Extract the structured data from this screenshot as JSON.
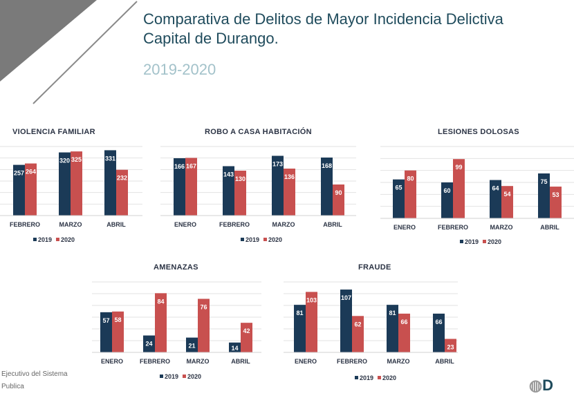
{
  "header": {
    "title_line1": "Comparativa de Delitos de Mayor Incidencia Delictiva",
    "title_line2": "Capital de Durango.",
    "subtitle": "2019-2020"
  },
  "footer": {
    "line1": "Ejecutivo   del   Sistema",
    "line2": "Publica",
    "logo_text": "D"
  },
  "colors": {
    "series_2019": "#1b3a57",
    "series_2020": "#c8504f",
    "title": "#1f4b5c",
    "subtitle": "#a3c2ca"
  },
  "chart_data": [
    {
      "type": "bar",
      "title": "VIOLENCIA FAMILIAR",
      "categories": [
        "FEBRERO",
        "MARZO",
        "ABRIL"
      ],
      "series": [
        {
          "name": "2019",
          "values": [
            257,
            320,
            331
          ]
        },
        {
          "name": "2020",
          "values": [
            264,
            325,
            232
          ]
        }
      ],
      "ylim": [
        0,
        350
      ],
      "grid": true,
      "legend": "bottom"
    },
    {
      "type": "bar",
      "title": "ROBO A CASA HABITACIÓN",
      "categories": [
        "ENERO",
        "FEBRERO",
        "MARZO",
        "ABRIL"
      ],
      "series": [
        {
          "name": "2019",
          "values": [
            166,
            143,
            173,
            168
          ]
        },
        {
          "name": "2020",
          "values": [
            167,
            130,
            136,
            90
          ]
        }
      ],
      "ylim": [
        0,
        200
      ],
      "grid": true,
      "legend": "bottom"
    },
    {
      "type": "bar",
      "title": "LESIONES DOLOSAS",
      "categories": [
        "ENERO",
        "FEBRERO",
        "MARZO",
        "ABRIL"
      ],
      "series": [
        {
          "name": "2019",
          "values": [
            65,
            60,
            64,
            75
          ]
        },
        {
          "name": "2020",
          "values": [
            80,
            99,
            54,
            53
          ]
        }
      ],
      "ylim": [
        0,
        120
      ],
      "grid": true,
      "legend": "bottom"
    },
    {
      "type": "bar",
      "title": "AMENAZAS",
      "categories": [
        "ENERO",
        "FEBRERO",
        "MARZO",
        "ABRIL"
      ],
      "series": [
        {
          "name": "2019",
          "values": [
            57,
            24,
            21,
            14
          ]
        },
        {
          "name": "2020",
          "values": [
            58,
            84,
            76,
            42
          ]
        }
      ],
      "ylim": [
        0,
        100
      ],
      "grid": true,
      "legend": "bottom"
    },
    {
      "type": "bar",
      "title": "FRAUDE",
      "categories": [
        "ENERO",
        "FEBRERO",
        "MARZO",
        "ABRIL"
      ],
      "series": [
        {
          "name": "2019",
          "values": [
            81,
            107,
            81,
            66
          ]
        },
        {
          "name": "2020",
          "values": [
            103,
            62,
            66,
            23
          ]
        }
      ],
      "ylim": [
        0,
        120
      ],
      "grid": true,
      "legend": "bottom"
    }
  ]
}
